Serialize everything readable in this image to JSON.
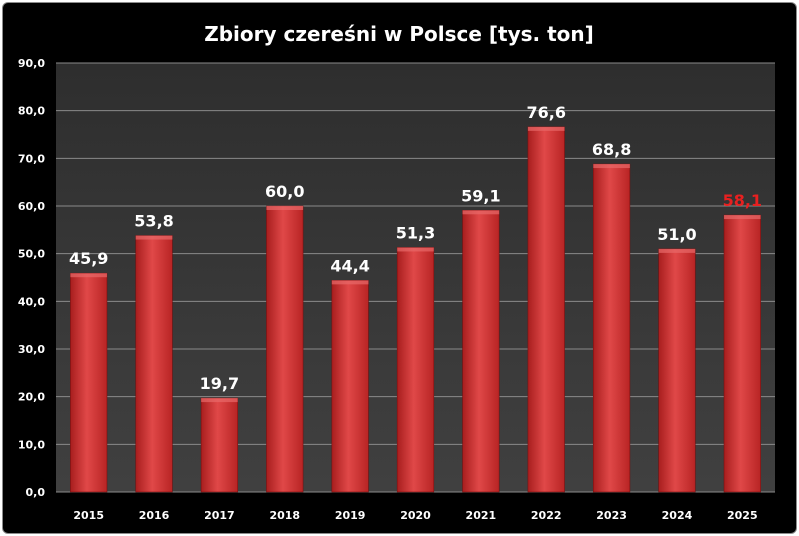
{
  "chart_data": {
    "type": "bar",
    "title": "Zbiory czereśni w Polsce [tys. ton]",
    "categories": [
      "2015",
      "2016",
      "2017",
      "2018",
      "2019",
      "2020",
      "2021",
      "2022",
      "2023",
      "2024",
      "2025"
    ],
    "values": [
      45.9,
      53.8,
      19.7,
      60.0,
      44.4,
      51.3,
      59.1,
      76.6,
      68.8,
      51.0,
      58.1
    ],
    "value_labels": [
      "45,9",
      "53,8",
      "19,7",
      "60,0",
      "44,4",
      "51,3",
      "59,1",
      "76,6",
      "68,8",
      "51,0",
      "58,1"
    ],
    "y_ticks": [
      "0,0",
      "10,0",
      "20,0",
      "30,0",
      "40,0",
      "50,0",
      "60,0",
      "70,0",
      "80,0",
      "90,0"
    ],
    "ylim": [
      0,
      90
    ],
    "y_step": 10,
    "grid": true,
    "legend": "none",
    "colors": {
      "background": "#000000",
      "plot_area": "#3a3a3a",
      "gridline": "#8a8a8a",
      "bar": "#d63a3a",
      "label": "#ffffff",
      "highlight_label": "#e82020"
    },
    "highlight_index": 10
  }
}
